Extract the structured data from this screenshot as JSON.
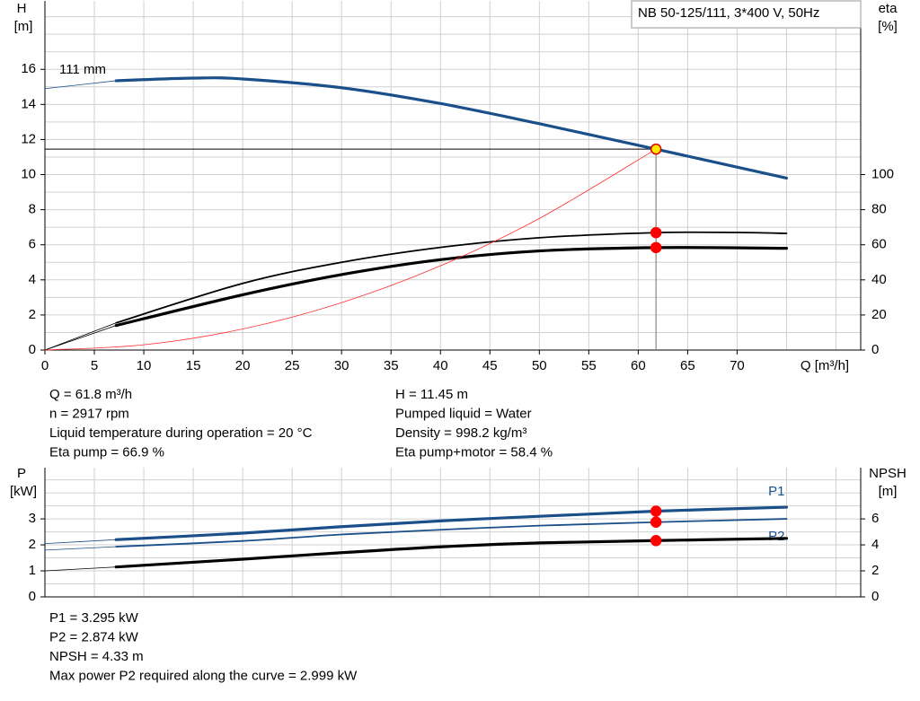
{
  "chart_data": [
    {
      "type": "line",
      "title": "NB 50-125/111, 3*400 V, 50Hz",
      "annotation": "111 mm",
      "ylabel": "H",
      "yunit": "[m]",
      "y2label": "eta",
      "y2unit": "[%]",
      "xlabel": "Q [m³/h]",
      "xlim": [
        0,
        82.5
      ],
      "xticks": [
        0,
        5,
        10,
        15,
        20,
        25,
        30,
        35,
        40,
        45,
        50,
        55,
        60,
        65,
        70
      ],
      "xgrid": [
        75,
        80
      ],
      "ylim": [
        0,
        19.9
      ],
      "yticks": [
        0,
        2,
        4,
        6,
        8,
        10,
        12,
        14,
        16
      ],
      "ygrid": [
        1,
        3,
        5,
        7,
        9,
        11,
        13,
        15,
        17,
        18,
        19
      ],
      "y2lim": [
        0,
        199
      ],
      "y2ticks": [
        0,
        20,
        40,
        60,
        80,
        100
      ],
      "grid": true,
      "marker_x": 61.8,
      "operating_lines": true,
      "series": [
        {
          "color": "#1a4f8a",
          "line": "thick",
          "lead_in": true,
          "marker": "#ffe800",
          "x": [
            0,
            7.2,
            15,
            20,
            30,
            40,
            50,
            61.8,
            75
          ],
          "values": [
            14.9,
            15.35,
            15.5,
            15.45,
            14.95,
            14.05,
            12.9,
            11.45,
            9.8
          ]
        },
        {
          "color": "#000000",
          "line": "medium",
          "lead_in": true,
          "marker": "#ff0000",
          "axis": "y2",
          "x": [
            0,
            7.2,
            20,
            30,
            40,
            50,
            61.8,
            70,
            75
          ],
          "values": [
            0,
            15.5,
            38,
            50,
            58.5,
            64,
            66.9,
            67,
            66.5
          ]
        },
        {
          "color": "#000000",
          "line": "thick",
          "lead_in": true,
          "marker": "#ff0000",
          "axis": "y2",
          "x": [
            0,
            7.2,
            20,
            30,
            40,
            50,
            61.8,
            75
          ],
          "values": [
            0,
            14,
            31.5,
            43,
            51.5,
            56.5,
            58.4,
            58
          ]
        },
        {
          "color": "#ff3030",
          "line": "thin",
          "x": [
            0,
            10,
            20,
            30,
            40,
            50,
            61.8
          ],
          "values": [
            0,
            0.3,
            1.2,
            2.7,
            4.8,
            7.5,
            11.45
          ]
        }
      ],
      "info_left": [
        "Q = 61.8 m³/h",
        "n = 2917 rpm",
        "Liquid temperature during operation = 20 °C",
        "Eta pump = 66.9 %"
      ],
      "info_right": [
        "H = 11.45 m",
        "Pumped liquid = Water",
        "Density = 998.2 kg/m³",
        "Eta pump+motor = 58.4 %"
      ]
    },
    {
      "type": "line",
      "ylabel": "P",
      "yunit": "[kW]",
      "y2label": "NPSH",
      "y2unit": "[m]",
      "xlim": [
        0,
        82.5
      ],
      "xgrid": [
        0,
        5,
        10,
        15,
        20,
        25,
        30,
        35,
        40,
        45,
        50,
        55,
        60,
        65,
        70,
        75,
        80
      ],
      "ylim": [
        0,
        4.97
      ],
      "yticks": [
        0,
        1,
        2,
        3
      ],
      "ygrid": [
        0.5,
        1.5,
        2.5,
        3.5,
        4,
        4.5
      ],
      "y2lim": [
        0,
        9.94
      ],
      "y2ticks": [
        0,
        2,
        4,
        6
      ],
      "grid": true,
      "marker_x": 61.8,
      "series": [
        {
          "name": "P1",
          "color": "#1a4f8a",
          "line": "thick",
          "lead_in": true,
          "marker": "#ff0000",
          "label_pos": "above",
          "x": [
            0,
            7.2,
            20,
            30,
            40,
            50,
            61.8,
            75
          ],
          "values": [
            2.05,
            2.2,
            2.45,
            2.7,
            2.92,
            3.1,
            3.295,
            3.45
          ]
        },
        {
          "name": "P2",
          "color": "#1a4f8a",
          "line": "medium",
          "lead_in": true,
          "marker": "#ff0000",
          "label_pos": "below",
          "x": [
            0,
            7.2,
            20,
            30,
            40,
            50,
            61.8,
            75
          ],
          "values": [
            1.8,
            1.93,
            2.15,
            2.4,
            2.58,
            2.74,
            2.874,
            3.0
          ]
        },
        {
          "color": "#000000",
          "line": "thick",
          "lead_in": true,
          "marker": "#ff0000",
          "axis": "y2",
          "x": [
            0,
            7.2,
            20,
            30,
            40,
            50,
            61.8,
            75
          ],
          "values": [
            2.0,
            2.3,
            2.9,
            3.4,
            3.85,
            4.15,
            4.33,
            4.5
          ]
        }
      ],
      "info_left": [
        "P1 = 3.295 kW",
        "P2 = 2.874 kW",
        "NPSH = 4.33 m",
        "Max power P2 required along the curve = 2.999 kW"
      ]
    }
  ]
}
